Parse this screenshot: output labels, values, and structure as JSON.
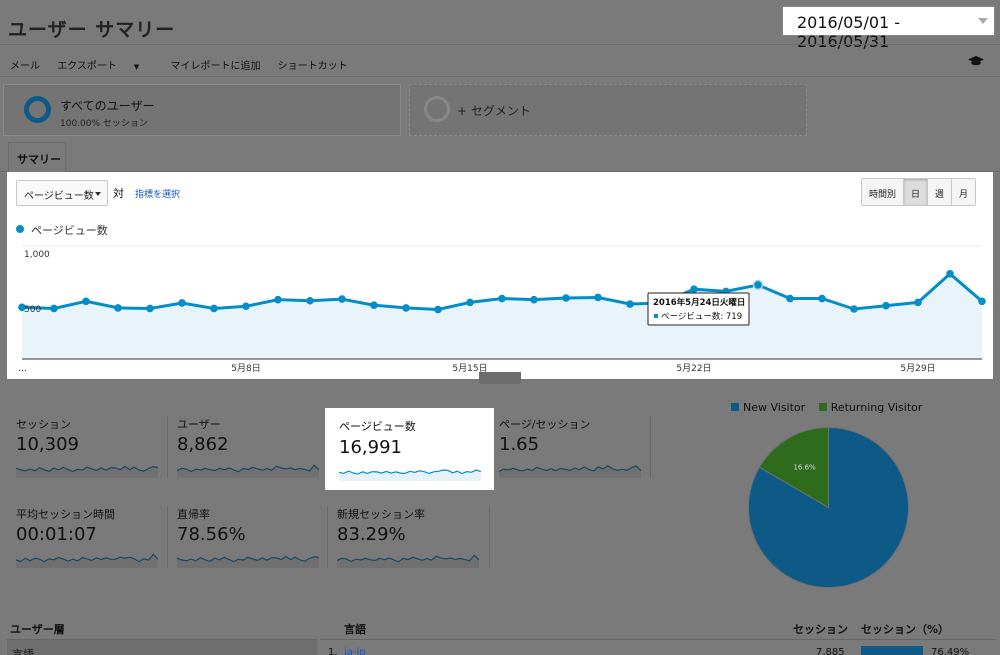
{
  "header": {
    "title": "ユーザー サマリー",
    "date_range": "2016/05/01 - 2016/05/31"
  },
  "toolbar": {
    "mail": "メール",
    "export": "エクスポート",
    "add_to_dashboard": "マイレポートに追加",
    "shortcut": "ショートカット"
  },
  "segments": {
    "all_users": "すべてのユーザー",
    "all_users_sub": "100.00% セッション",
    "add_segment": "+ セグメント"
  },
  "tabs": {
    "summary": "サマリー"
  },
  "chart_controls": {
    "metric": "ページビュー数",
    "vs": "対",
    "select_metric": "指標を選択",
    "granularity": [
      "時間別",
      "日",
      "週",
      "月"
    ],
    "granularity_active": "日",
    "legend": "ページビュー数"
  },
  "chart_data": {
    "type": "line",
    "series": [
      {
        "name": "ページビュー数",
        "color": "#058dc7",
        "x": [
          "2016-05-01",
          "2016-05-02",
          "2016-05-03",
          "2016-05-04",
          "2016-05-05",
          "2016-05-06",
          "2016-05-07",
          "2016-05-08",
          "2016-05-09",
          "2016-05-10",
          "2016-05-11",
          "2016-05-12",
          "2016-05-13",
          "2016-05-14",
          "2016-05-15",
          "2016-05-16",
          "2016-05-17",
          "2016-05-18",
          "2016-05-19",
          "2016-05-20",
          "2016-05-21",
          "2016-05-22",
          "2016-05-23",
          "2016-05-24",
          "2016-05-25",
          "2016-05-26",
          "2016-05-27",
          "2016-05-28",
          "2016-05-29",
          "2016-05-30",
          "2016-05-31"
        ],
        "values": [
          515,
          505,
          570,
          510,
          505,
          555,
          505,
          525,
          585,
          575,
          590,
          535,
          510,
          495,
          560,
          595,
          585,
          600,
          605,
          545,
          555,
          680,
          660,
          719,
          595,
          595,
          500,
          530,
          560,
          820,
          570
        ]
      }
    ],
    "ylim": [
      0,
      1000
    ],
    "y_ticks": [
      "1,000",
      "500"
    ],
    "x_ticks": [
      {
        "label": "…",
        "x": "2016-05-01"
      },
      {
        "label": "5月8日",
        "x": "2016-05-08"
      },
      {
        "label": "5月15日",
        "x": "2016-05-15"
      },
      {
        "label": "5月22日",
        "x": "2016-05-22"
      },
      {
        "label": "5月29日",
        "x": "2016-05-29"
      }
    ],
    "tooltip": {
      "title": "2016年5月24日火曜日",
      "label": "ページビュー数: 719",
      "x": "2016-05-24"
    }
  },
  "metrics": [
    {
      "id": "sessions",
      "title": "セッション",
      "value": "10,309"
    },
    {
      "id": "users",
      "title": "ユーザー",
      "value": "8,862"
    },
    {
      "id": "pageviews",
      "title": "ページビュー数",
      "value": "16,991"
    },
    {
      "id": "pages_per_session",
      "title": "ページ/セッション",
      "value": "1.65"
    },
    {
      "id": "avg_session_duration",
      "title": "平均セッション時間",
      "value": "00:01:07"
    },
    {
      "id": "bounce_rate",
      "title": "直帰率",
      "value": "78.56%"
    },
    {
      "id": "new_session_rate",
      "title": "新規セッション率",
      "value": "83.29%"
    }
  ],
  "pie": {
    "legend": [
      {
        "name": "New Visitor",
        "color": "#0d5a86"
      },
      {
        "name": "Returning Visitor",
        "color": "#2f6b1d"
      }
    ],
    "slices": [
      {
        "name": "New Visitor",
        "value": 83.4,
        "label": "83.4%",
        "color": "#0d5a86"
      },
      {
        "name": "Returning Visitor",
        "value": 16.6,
        "label": "16.6%",
        "color": "#2f6b1d"
      }
    ]
  },
  "bottom": {
    "demographics_header": "ユーザー層",
    "demographics_row": "言語",
    "language_header": "言語",
    "sessions_header": "セッション",
    "sessions_pct_header": "セッション（%）",
    "row_index": "1.",
    "row_language": "ja-jp",
    "row_sessions": "7,885",
    "row_pct": "76.49%",
    "row_pct_value": 76.49
  }
}
